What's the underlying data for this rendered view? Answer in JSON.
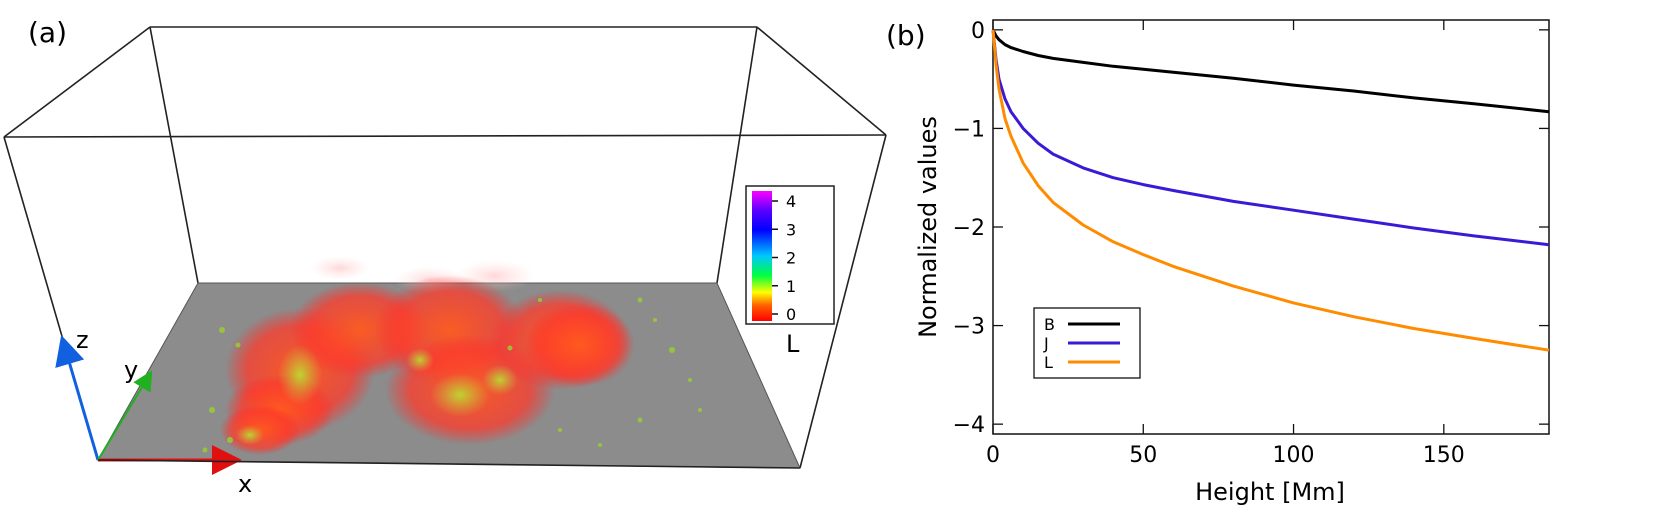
{
  "panel_a": {
    "label": "(a)",
    "axes": {
      "x": "x",
      "y": "y",
      "z": "z"
    },
    "colorbar": {
      "label": "L",
      "ticks": [
        "4",
        "3",
        "2",
        "1",
        "0"
      ],
      "colors": [
        "#ff00ff",
        "#5a00ff",
        "#0000ff",
        "#00c8ff",
        "#00ff40",
        "#ffff00",
        "#ff6000",
        "#ff0000"
      ]
    }
  },
  "panel_b": {
    "label": "(b)",
    "chart_data": {
      "type": "line",
      "title": "",
      "xlabel": "Height [Mm]",
      "ylabel": "Normalized values",
      "xlim": [
        0,
        185
      ],
      "ylim": [
        -4.1,
        0.1
      ],
      "xticks": [
        0,
        50,
        100,
        150
      ],
      "yticks": [
        0,
        -1,
        -2,
        -3,
        -4
      ],
      "grid": false,
      "legend_position": "bottom-left",
      "series": [
        {
          "name": "B",
          "color": "#000000",
          "x": [
            0,
            1,
            2,
            4,
            6,
            10,
            15,
            20,
            30,
            40,
            50,
            60,
            80,
            100,
            120,
            140,
            160,
            185
          ],
          "y": [
            0,
            -0.06,
            -0.1,
            -0.15,
            -0.18,
            -0.22,
            -0.26,
            -0.29,
            -0.33,
            -0.37,
            -0.4,
            -0.43,
            -0.49,
            -0.56,
            -0.62,
            -0.69,
            -0.75,
            -0.83
          ]
        },
        {
          "name": "J",
          "color": "#3a1ad6",
          "x": [
            0,
            1,
            2,
            4,
            6,
            10,
            15,
            20,
            30,
            40,
            50,
            60,
            80,
            100,
            120,
            140,
            160,
            185
          ],
          "y": [
            0,
            -0.3,
            -0.5,
            -0.7,
            -0.83,
            -1.0,
            -1.15,
            -1.26,
            -1.4,
            -1.5,
            -1.57,
            -1.63,
            -1.74,
            -1.83,
            -1.92,
            -2.01,
            -2.09,
            -2.18
          ]
        },
        {
          "name": "L",
          "color": "#ff8c00",
          "x": [
            0,
            1,
            2,
            4,
            6,
            10,
            15,
            20,
            30,
            40,
            50,
            60,
            80,
            100,
            120,
            140,
            160,
            185
          ],
          "y": [
            0,
            -0.35,
            -0.6,
            -0.9,
            -1.08,
            -1.35,
            -1.58,
            -1.75,
            -1.98,
            -2.15,
            -2.28,
            -2.4,
            -2.6,
            -2.77,
            -2.91,
            -3.03,
            -3.13,
            -3.25
          ]
        }
      ]
    }
  }
}
